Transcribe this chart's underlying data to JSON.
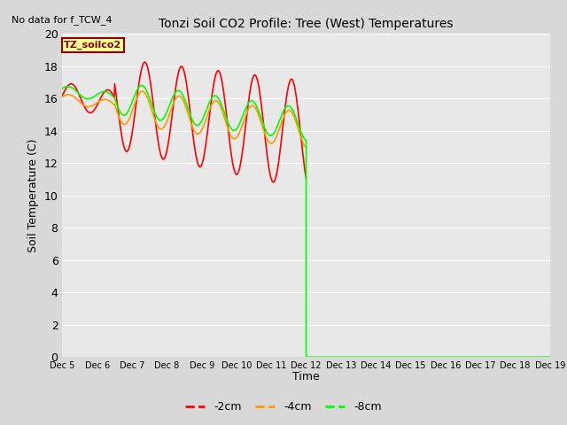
{
  "title": "Tonzi Soil CO2 Profile: Tree (West) Temperatures",
  "no_data_label": "No data for f_TCW_4",
  "site_label": "TZ_soilco2",
  "ylabel": "Soil Temperature (C)",
  "xlabel": "Time",
  "ylim": [
    0,
    20
  ],
  "yticks": [
    0,
    2,
    4,
    6,
    8,
    10,
    12,
    14,
    16,
    18,
    20
  ],
  "xtick_labels": [
    "Dec 5",
    "Dec 6",
    "Dec 7",
    "Dec 8",
    "Dec 9",
    "Dec 10",
    "Dec 11",
    "Dec 12",
    "Dec 13",
    "Dec 14",
    "Dec 15",
    "Dec 16",
    "Dec 17",
    "Dec 18",
    "Dec 19"
  ],
  "background_color": "#e8e8e8",
  "grid_color": "#ffffff",
  "line_colors": [
    "#ff0000",
    "#ff9900",
    "#00ff00"
  ],
  "line_labels": [
    "-2cm",
    "-4cm",
    "-8cm"
  ],
  "line_width": 1.2,
  "num_days": 14
}
